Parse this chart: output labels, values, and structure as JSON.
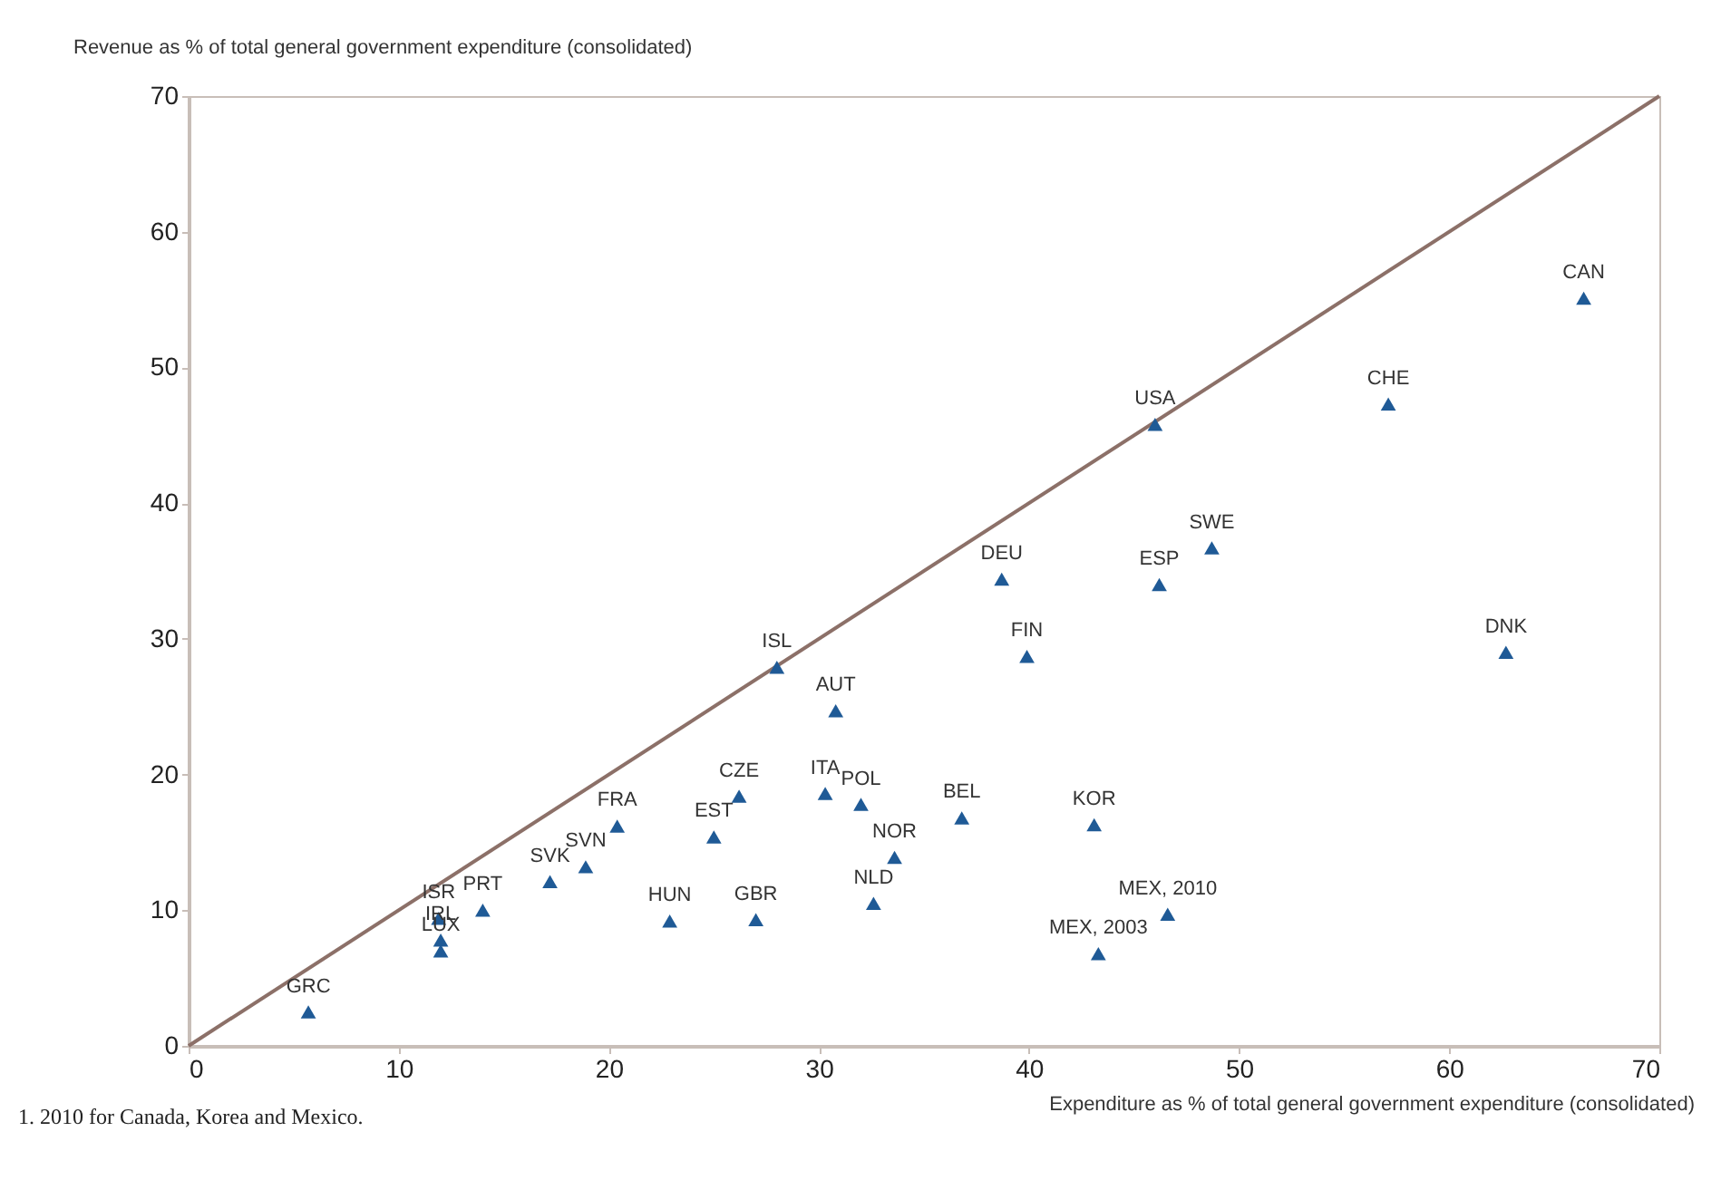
{
  "chart_data": {
    "type": "scatter",
    "xlabel": "Expenditure as % of total general government expenditure (consolidated)",
    "ylabel": "Revenue as % of total general government expenditure (consolidated)",
    "xlim": [
      0,
      70
    ],
    "ylim": [
      0,
      70
    ],
    "xticks": [
      0,
      10,
      20,
      30,
      40,
      50,
      60,
      70
    ],
    "yticks": [
      0,
      10,
      20,
      30,
      40,
      50,
      60,
      70
    ],
    "grid": false,
    "series": [
      {
        "type": "line",
        "marker": "none",
        "color": "#8c7068",
        "x": [
          0,
          70
        ],
        "values": [
          0,
          70
        ]
      },
      {
        "marker": "triangle",
        "color": "#1f5a96",
        "x": [
          5.7,
          11.9,
          12.0,
          12.0,
          14.0,
          17.2,
          18.9,
          20.4,
          22.9,
          25.0,
          27.0,
          26.2,
          28.0,
          30.8,
          30.3,
          32.0,
          33.6,
          32.6,
          36.8,
          39.9,
          43.1,
          46.6,
          43.3,
          38.7,
          46.2,
          48.7,
          46.0,
          57.1,
          66.4,
          62.7
        ],
        "values": [
          2.5,
          9.4,
          7.8,
          7.0,
          10.0,
          12.1,
          13.2,
          16.2,
          9.2,
          15.4,
          9.3,
          18.4,
          27.9,
          24.7,
          18.6,
          17.8,
          13.9,
          10.5,
          16.8,
          28.7,
          16.3,
          9.7,
          6.8,
          34.4,
          34.0,
          36.7,
          45.8,
          47.3,
          55.1,
          29.0
        ]
      }
    ],
    "annotations": [
      {
        "text": "GRC",
        "x": 5.7,
        "y": 2.5
      },
      {
        "text": "ISR",
        "x": 11.9,
        "y": 9.4
      },
      {
        "text": "IRL",
        "x": 12.0,
        "y": 7.8
      },
      {
        "text": "LUX",
        "x": 12.0,
        "y": 7.0
      },
      {
        "text": "PRT",
        "x": 14.0,
        "y": 10.0
      },
      {
        "text": "SVK",
        "x": 17.2,
        "y": 12.1
      },
      {
        "text": "SVN",
        "x": 18.9,
        "y": 13.2
      },
      {
        "text": "FRA",
        "x": 20.4,
        "y": 16.2
      },
      {
        "text": "HUN",
        "x": 22.9,
        "y": 9.2
      },
      {
        "text": "EST",
        "x": 25.0,
        "y": 15.4
      },
      {
        "text": "GBR",
        "x": 27.0,
        "y": 9.3
      },
      {
        "text": "CZE",
        "x": 26.2,
        "y": 18.4
      },
      {
        "text": "ISL",
        "x": 28.0,
        "y": 27.9
      },
      {
        "text": "AUT",
        "x": 30.8,
        "y": 24.7
      },
      {
        "text": "ITA",
        "x": 30.3,
        "y": 18.6
      },
      {
        "text": "POL",
        "x": 32.0,
        "y": 17.8
      },
      {
        "text": "NOR",
        "x": 33.6,
        "y": 13.9
      },
      {
        "text": "NLD",
        "x": 32.6,
        "y": 10.5
      },
      {
        "text": "BEL",
        "x": 36.8,
        "y": 16.8
      },
      {
        "text": "FIN",
        "x": 39.9,
        "y": 28.7
      },
      {
        "text": "KOR",
        "x": 43.1,
        "y": 16.3
      },
      {
        "text": "MEX, 2010",
        "x": 46.6,
        "y": 9.7
      },
      {
        "text": "MEX, 2003",
        "x": 43.3,
        "y": 6.8
      },
      {
        "text": "DEU",
        "x": 38.7,
        "y": 34.4
      },
      {
        "text": "ESP",
        "x": 46.2,
        "y": 34.0
      },
      {
        "text": "SWE",
        "x": 48.7,
        "y": 36.7
      },
      {
        "text": "USA",
        "x": 46.0,
        "y": 45.8
      },
      {
        "text": "CHE",
        "x": 57.1,
        "y": 47.3
      },
      {
        "text": "CAN",
        "x": 66.4,
        "y": 55.1
      },
      {
        "text": "DNK",
        "x": 62.7,
        "y": 29.0
      },
      "1. 2010 for Canada, Korea and Mexico."
    ]
  }
}
